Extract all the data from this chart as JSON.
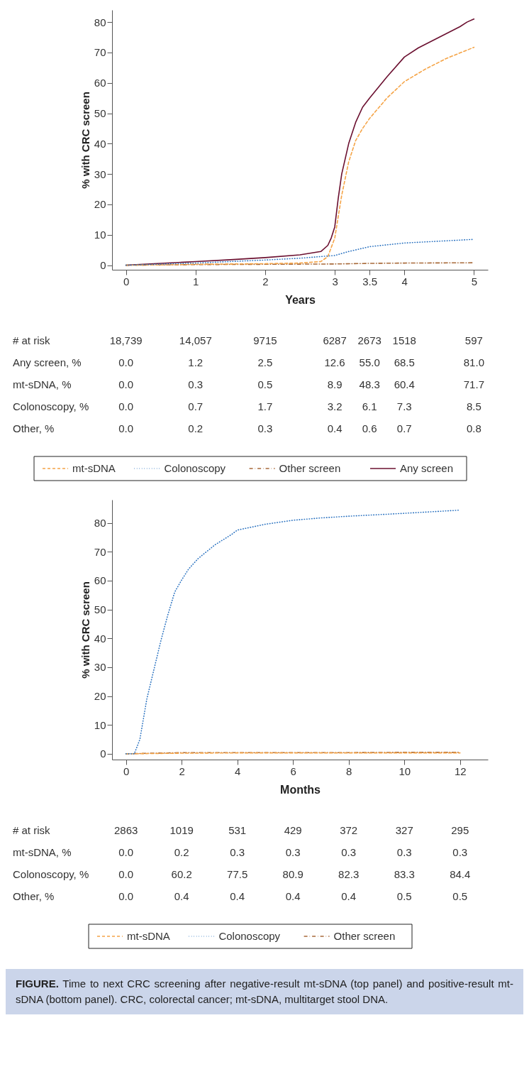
{
  "chart_data": [
    {
      "type": "line",
      "xlabel": "Years",
      "ylabel": "% with CRC screen",
      "xlim": [
        -0.2,
        5.2
      ],
      "ylim": [
        -1.5,
        84
      ],
      "xticks": [
        0,
        1,
        2,
        3,
        3.5,
        4,
        5
      ],
      "yticks": [
        0,
        10,
        20,
        30,
        40,
        50,
        60,
        70,
        80
      ],
      "legend": "bottom",
      "series": [
        {
          "name": "mt-sDNA",
          "color": "#f5a447",
          "line_style": "dashed",
          "x": [
            0,
            0.5,
            1,
            1.5,
            2,
            2.5,
            2.8,
            2.9,
            3,
            3.05,
            3.1,
            3.2,
            3.3,
            3.4,
            3.5,
            3.75,
            4,
            4.3,
            4.6,
            5
          ],
          "values": [
            0,
            0.1,
            0.3,
            0.4,
            0.5,
            0.7,
            1.2,
            2.8,
            8.9,
            16,
            23,
            34,
            41,
            45,
            48.3,
            55,
            60.4,
            64.5,
            68,
            71.7
          ]
        },
        {
          "name": "Colonoscopy",
          "color": "#2a72c0",
          "line_style": "dotted",
          "x": [
            0,
            1,
            2,
            2.5,
            3,
            3.2,
            3.5,
            4,
            4.5,
            5
          ],
          "values": [
            0,
            0.7,
            1.7,
            2.3,
            3.2,
            4.5,
            6.1,
            7.3,
            7.9,
            8.5
          ]
        },
        {
          "name": "Other screen",
          "color": "#a86a3a",
          "line_style": "dashdot",
          "x": [
            0,
            1,
            2,
            3,
            3.5,
            4,
            5
          ],
          "values": [
            0,
            0.2,
            0.3,
            0.4,
            0.6,
            0.7,
            0.8
          ]
        },
        {
          "name": "Any screen",
          "color": "#6b1030",
          "line_style": "solid",
          "x": [
            0,
            0.5,
            1,
            1.5,
            2,
            2.5,
            2.8,
            2.9,
            2.95,
            3,
            3.05,
            3.1,
            3.2,
            3.3,
            3.4,
            3.5,
            3.75,
            4,
            4.2,
            4.5,
            4.8,
            4.9,
            5
          ],
          "values": [
            0,
            0.6,
            1.2,
            1.8,
            2.5,
            3.4,
            4.5,
            6.5,
            9,
            12.6,
            22,
            30,
            40,
            47,
            52,
            55,
            62,
            68.5,
            71.5,
            75,
            78.5,
            80,
            81
          ]
        }
      ],
      "annotations": [
        "# at risk",
        "18,739",
        "14,057",
        "9715",
        "6287",
        "2673",
        "1518",
        "597",
        "Any screen, %",
        "0.0",
        "1.2",
        "2.5",
        "12.6",
        "55.0",
        "68.5",
        "81.0",
        "mt-sDNA, %",
        "0.0",
        "0.3",
        "0.5",
        "8.9",
        "48.3",
        "60.4",
        "71.7",
        "Colonoscopy, %",
        "0.0",
        "0.7",
        "1.7",
        "3.2",
        "6.1",
        "7.3",
        "8.5",
        "Other, %",
        "0.0",
        "0.2",
        "0.3",
        "0.4",
        "0.6",
        "0.7",
        "0.8"
      ]
    },
    {
      "type": "line",
      "xlabel": "Months",
      "ylabel": "% with CRC screen",
      "xlim": [
        -0.5,
        13
      ],
      "ylim": [
        -2,
        88
      ],
      "xticks": [
        0,
        2,
        4,
        6,
        8,
        10,
        12
      ],
      "yticks": [
        0,
        10,
        20,
        30,
        40,
        50,
        60,
        70,
        80
      ],
      "legend": "bottom",
      "series": [
        {
          "name": "mt-sDNA",
          "color": "#f5a447",
          "line_style": "dashed",
          "x": [
            0,
            2,
            4,
            6,
            8,
            10,
            12
          ],
          "values": [
            0,
            0.2,
            0.3,
            0.3,
            0.3,
            0.3,
            0.3
          ]
        },
        {
          "name": "Colonoscopy",
          "color": "#2a72c0",
          "line_style": "dotted",
          "x": [
            0,
            0.3,
            0.5,
            0.75,
            1,
            1.25,
            1.5,
            1.75,
            2,
            2.25,
            2.6,
            3.2,
            3.8,
            4,
            5,
            6,
            7,
            8,
            10,
            12
          ],
          "values": [
            0,
            0,
            5,
            19,
            29,
            39,
            48,
            56,
            60.2,
            64,
            67.7,
            72.4,
            76,
            77.5,
            79.5,
            80.9,
            81.7,
            82.3,
            83.3,
            84.4
          ]
        },
        {
          "name": "Other screen",
          "color": "#a86a3a",
          "line_style": "dashdot",
          "x": [
            0,
            2,
            4,
            6,
            8,
            10,
            12
          ],
          "values": [
            0,
            0.4,
            0.4,
            0.4,
            0.4,
            0.5,
            0.5
          ]
        }
      ],
      "annotations": [
        "# at risk",
        "2863",
        "1019",
        "531",
        "429",
        "372",
        "327",
        "295",
        "mt-sDNA, %",
        "0.0",
        "0.2",
        "0.3",
        "0.3",
        "0.3",
        "0.3",
        "0.3",
        "Colonoscopy, %",
        "0.0",
        "60.2",
        "77.5",
        "80.9",
        "82.3",
        "83.3",
        "84.4",
        "Other, %",
        "0.0",
        "0.4",
        "0.4",
        "0.4",
        "0.4",
        "0.5",
        "0.5"
      ]
    },
    {
      "type": "other",
      "title": "FIGURE.",
      "annotations": [
        "Time to next CRC screening after negative-result mt-sDNA (top panel) and positive-result mt-sDNA (bottom panel). CRC, colorectal cancer; mt-sDNA, multitarget stool DNA."
      ]
    }
  ]
}
